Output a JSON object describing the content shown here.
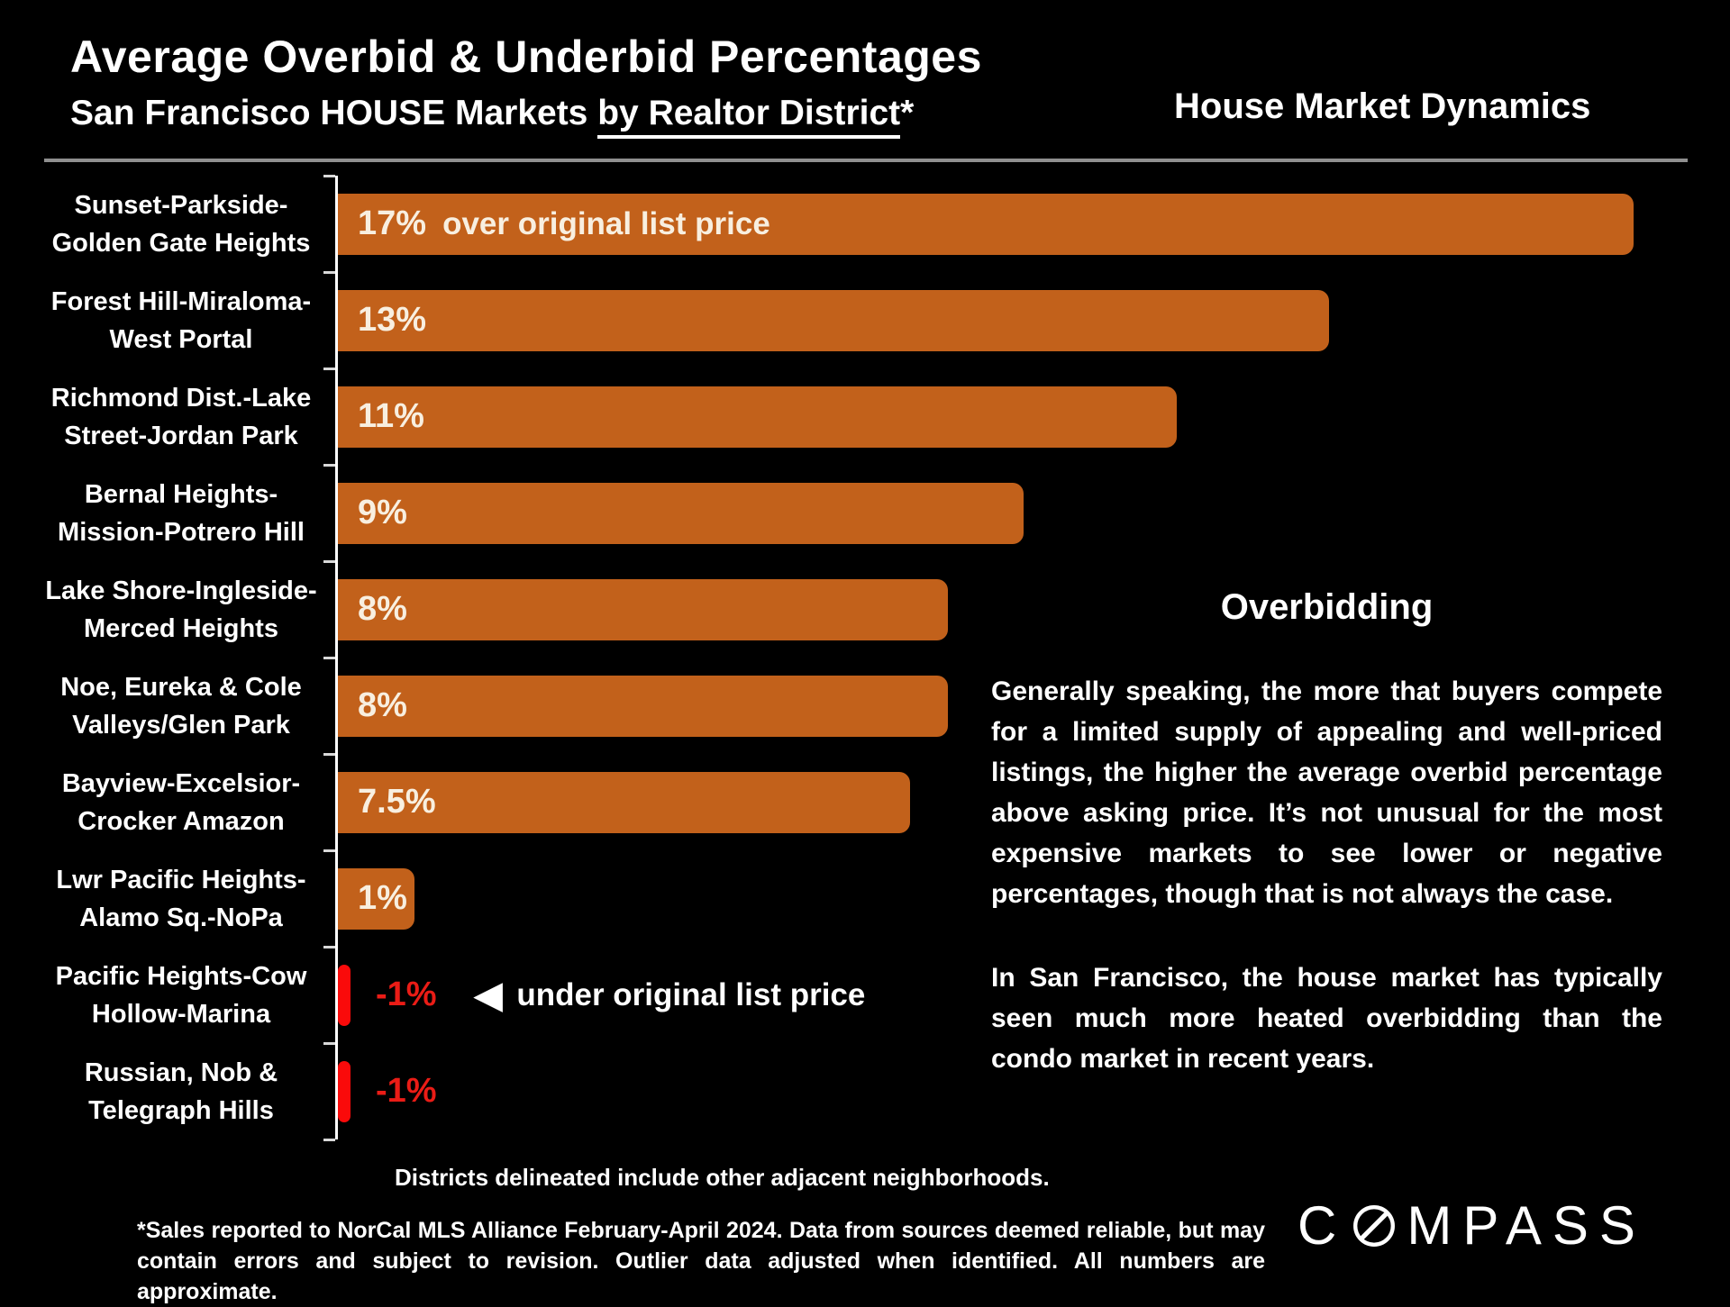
{
  "header": {
    "title": "Average Overbid & Underbid Percentages",
    "subtitle_prefix": "San Francisco HOUSE Markets ",
    "subtitle_underlined": "by Realtor District",
    "subtitle_suffix": "*",
    "right_title": "House Market Dynamics"
  },
  "chart_data": {
    "type": "bar",
    "orientation": "horizontal",
    "title": "Average Overbid & Underbid Percentages — San Francisco HOUSE Markets by Realtor District*",
    "categories": [
      "Sunset-Parkside-Golden Gate Heights",
      "Forest Hill-Miraloma-West Portal",
      "Richmond Dist.-Lake Street-Jordan Park",
      "Bernal Heights-Mission-Potrero Hill",
      "Lake Shore-Ingleside-Merced Heights",
      "Noe, Eureka & Cole Valleys/Glen Park",
      "Bayview-Excelsior-Crocker Amazon",
      "Lwr Pacific Heights-Alamo Sq.-NoPa",
      "Pacific Heights-Cow Hollow-Marina",
      "Russian, Nob & Telegraph Hills"
    ],
    "category_lines": [
      [
        "Sunset-Parkside-",
        "Golden Gate Heights"
      ],
      [
        "Forest Hill-Miraloma-",
        "West Portal"
      ],
      [
        "Richmond Dist.-Lake",
        "Street-Jordan Park"
      ],
      [
        "Bernal Heights-",
        "Mission-Potrero Hill"
      ],
      [
        "Lake Shore-Ingleside-",
        "Merced Heights"
      ],
      [
        "Noe, Eureka & Cole",
        "Valleys/Glen Park"
      ],
      [
        "Bayview-Excelsior-",
        "Crocker Amazon"
      ],
      [
        "Lwr Pacific Heights-",
        "Alamo Sq.-NoPa"
      ],
      [
        "Pacific Heights-Cow",
        "Hollow-Marina"
      ],
      [
        "Russian, Nob &",
        "Telegraph Hills"
      ]
    ],
    "values": [
      17,
      13,
      11,
      9,
      8,
      8,
      7.5,
      1,
      -1,
      -1
    ],
    "value_labels": [
      "17%",
      "13%",
      "11%",
      "9%",
      "8%",
      "8%",
      "7.5%",
      "1%",
      "-1%",
      "-1%"
    ],
    "first_bar_annotation": "over original list price",
    "negative_annotation": "under original list price",
    "negative_annotation_row": 8,
    "left_arrow_icon": "◀",
    "xlim": [
      0,
      17.75
    ],
    "grid": false,
    "colors": {
      "positive_bar": "#c2611b",
      "negative_bar": "#fa0a0a",
      "negative_text": "#ea1c16",
      "bar_label": "#f8efe0",
      "axis": "#ffffff",
      "top_divider": "#8f8f8f"
    }
  },
  "side_panel": {
    "heading": "Overbidding",
    "paragraphs": [
      "Generally speaking, the more that buyers compete for a limited supply of appealing and well-priced listings, the higher the average overbid percentage above asking price. It’s not unusual for the most expensive markets to see lower or negative percentages, though that is not always the case.",
      "In San Francisco, the house market has typically seen much more heated overbidding than the condo market in recent years."
    ]
  },
  "footer": {
    "districts_note": "Districts delineated include other adjacent neighborhoods.",
    "footnote": "*Sales reported to NorCal MLS Alliance February-April 2024. Data from sources deemed reliable, but may contain errors and subject to revision. Outlier data adjusted when identified. All numbers are approximate."
  },
  "logo": {
    "brand": "COMPASS",
    "prefix": "C",
    "suffix": "MPASS"
  }
}
